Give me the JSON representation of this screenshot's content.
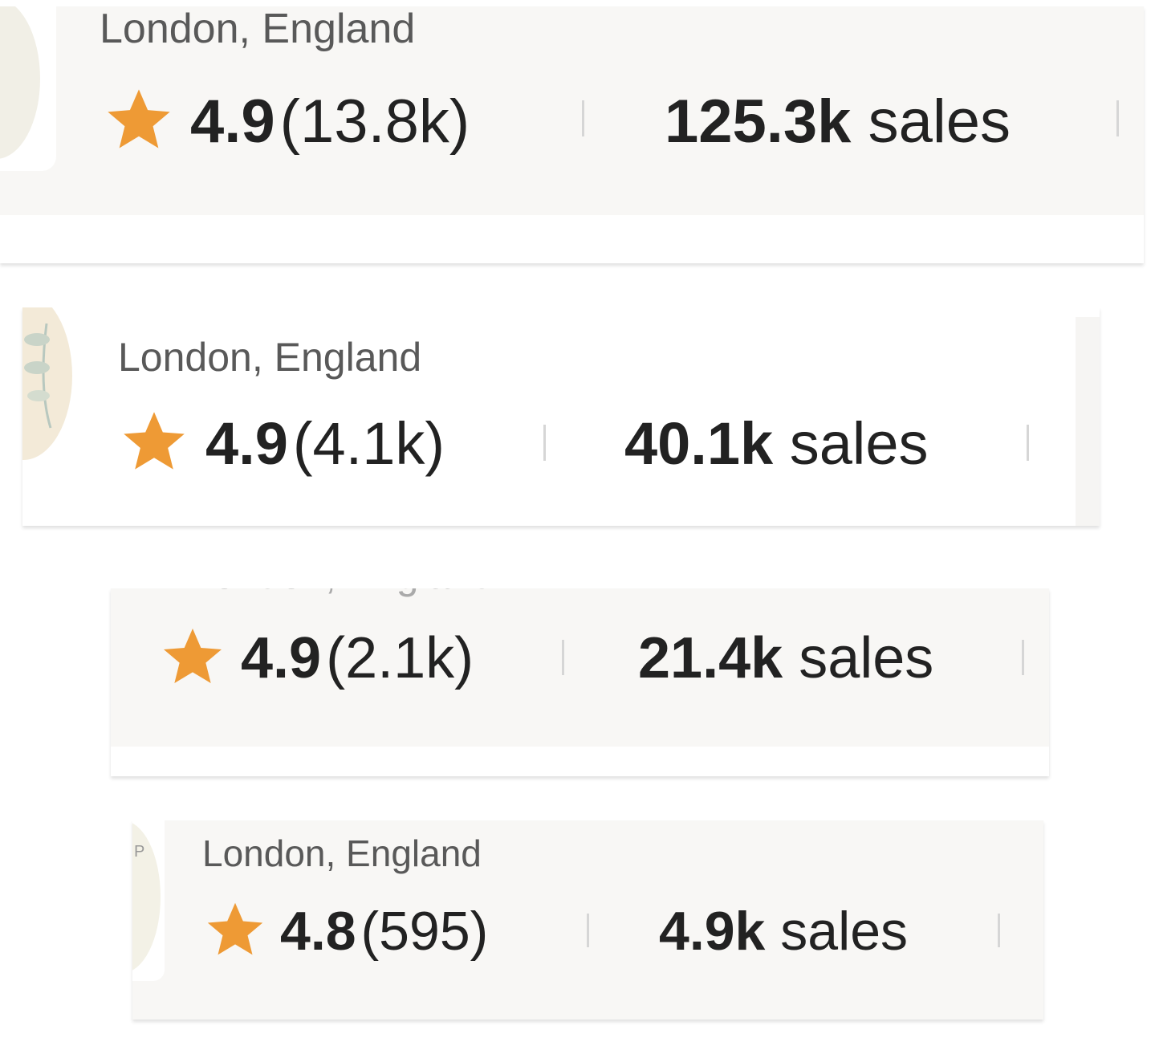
{
  "accent_color": "#ee9a35",
  "cards": [
    {
      "location": "London, England",
      "rating": "4.9",
      "reviews": "(13.8k)",
      "sales_count": "125.3k",
      "sales_label": "sales",
      "star_icon": "star-icon"
    },
    {
      "location": "London, England",
      "rating": "4.9",
      "reviews": "(4.1k)",
      "sales_count": "40.1k",
      "sales_label": "sales",
      "star_icon": "star-icon"
    },
    {
      "location": "London, England",
      "rating": "4.9",
      "reviews": "(2.1k)",
      "sales_count": "21.4k",
      "sales_label": "sales",
      "star_icon": "star-icon"
    },
    {
      "location": "London, England",
      "rating": "4.8",
      "reviews": "(595)",
      "sales_count": "4.9k",
      "sales_label": "sales",
      "avatar_letter": "P",
      "star_icon": "star-icon"
    }
  ]
}
